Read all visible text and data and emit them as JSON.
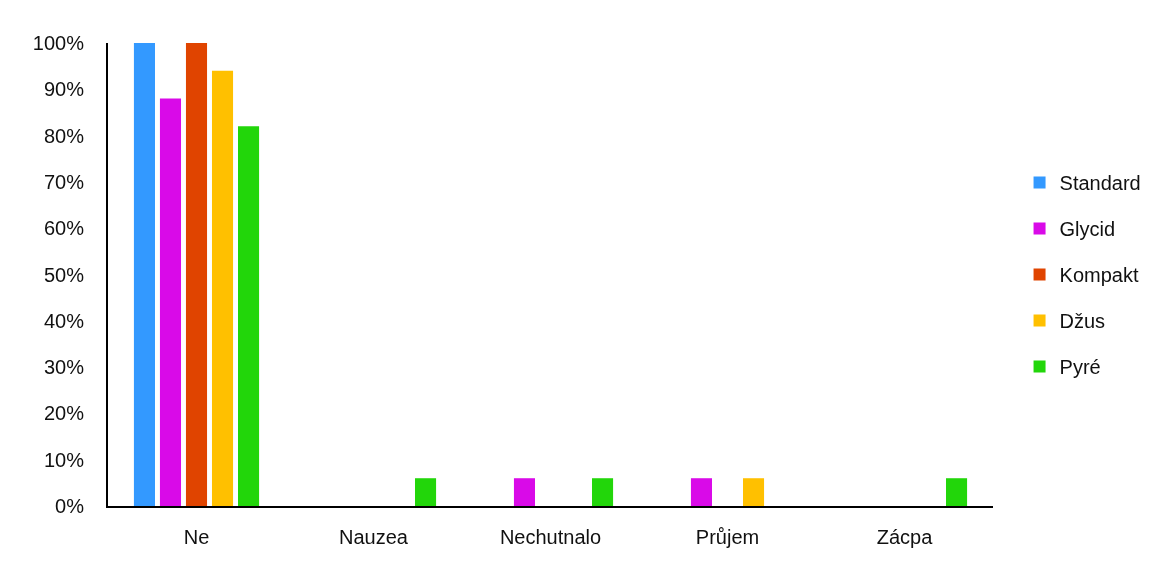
{
  "chart_data": {
    "type": "bar",
    "categories": [
      "Ne",
      "Nauzea",
      "Nechutnalo",
      "Průjem",
      "Zácpa"
    ],
    "series": [
      {
        "name": "Standard",
        "color": "#3399ff",
        "values": [
          100,
          0,
          0,
          0,
          0
        ]
      },
      {
        "name": "Glycid",
        "color": "#d90ae8",
        "values": [
          88,
          0,
          6,
          6,
          0
        ]
      },
      {
        "name": "Kompakt",
        "color": "#e04400",
        "values": [
          100,
          0,
          0,
          0,
          0
        ]
      },
      {
        "name": "Džus",
        "color": "#ffc000",
        "values": [
          94,
          0,
          0,
          6,
          0
        ]
      },
      {
        "name": "Pyré",
        "color": "#22d60a",
        "values": [
          82,
          6,
          6,
          0,
          6
        ]
      }
    ],
    "ylim": [
      0,
      100
    ],
    "yticks": [
      {
        "value": 0,
        "label": "0%"
      },
      {
        "value": 10,
        "label": "10%"
      },
      {
        "value": 20,
        "label": "20%"
      },
      {
        "value": 30,
        "label": "30%"
      },
      {
        "value": 40,
        "label": "40%"
      },
      {
        "value": 50,
        "label": "50%"
      },
      {
        "value": 60,
        "label": "60%"
      },
      {
        "value": 70,
        "label": "70%"
      },
      {
        "value": 80,
        "label": "80%"
      },
      {
        "value": 90,
        "label": "90%"
      },
      {
        "value": 100,
        "label": "100%"
      }
    ],
    "grid": false,
    "legend": "right"
  }
}
